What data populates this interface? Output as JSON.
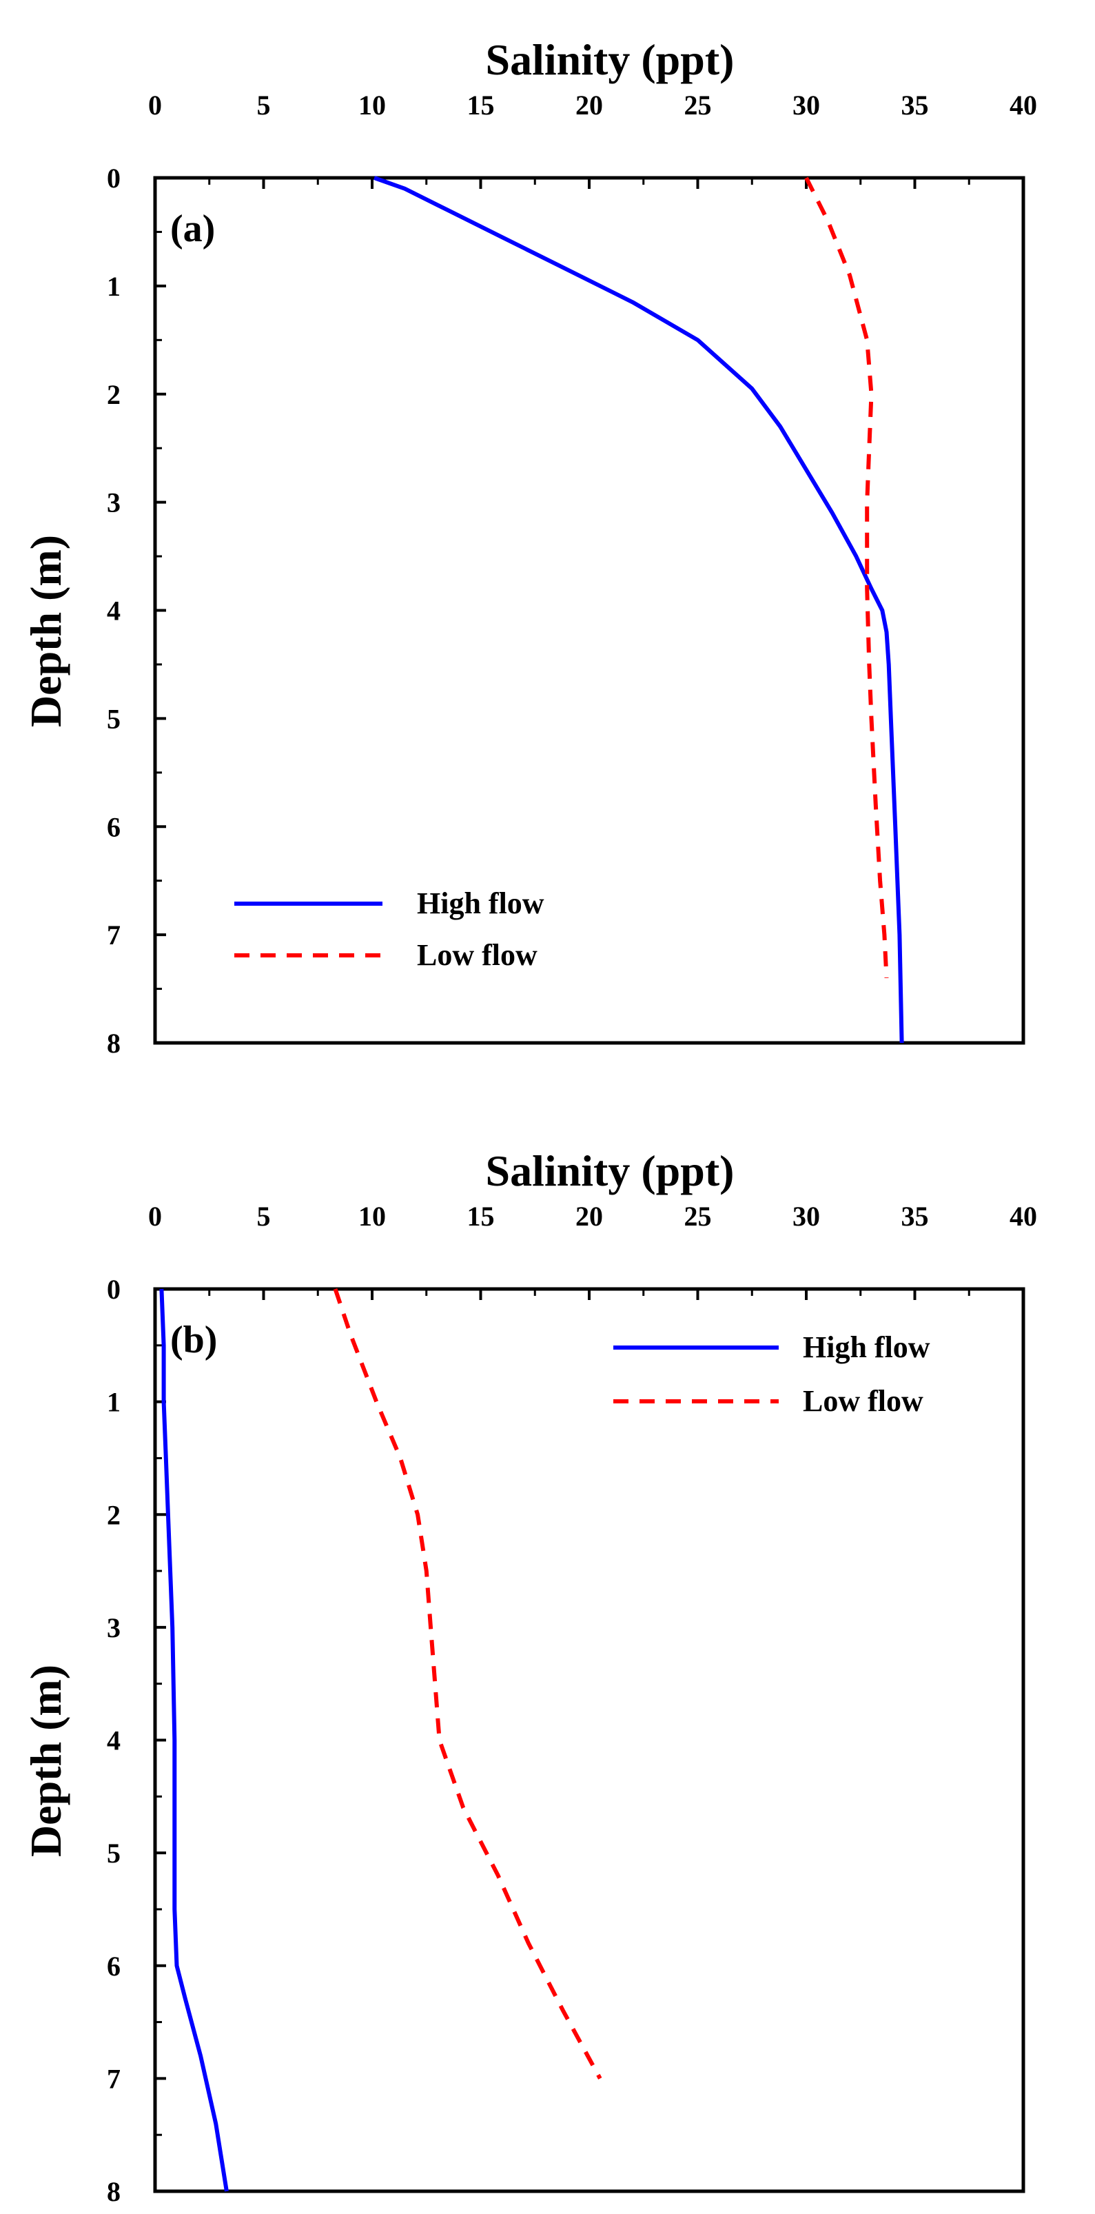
{
  "chart_data": [
    {
      "type": "line",
      "panel_label": "(a)",
      "xlabel": "Salinity (ppt)",
      "ylabel": "Depth (m)",
      "xlim": [
        0,
        40
      ],
      "ylim": [
        0,
        8
      ],
      "y_inverted": true,
      "x_axis_position": "top",
      "x_ticks": [
        "0",
        "5",
        "10",
        "15",
        "20",
        "25",
        "30",
        "35",
        "40"
      ],
      "y_ticks": [
        "0",
        "1",
        "2",
        "3",
        "4",
        "5",
        "6",
        "7",
        "8"
      ],
      "legend_position": "bottom-left",
      "series": [
        {
          "name": "High flow",
          "style": "solid",
          "color": "#0000ff",
          "x": [
            10.1,
            11.5,
            13.5,
            16.0,
            19.0,
            22.0,
            25.0,
            27.5,
            28.8,
            30.0,
            31.2,
            32.3,
            33.0,
            33.5,
            33.7,
            33.8,
            33.9,
            34.0,
            34.1,
            34.2,
            34.3,
            34.4
          ],
          "y": [
            0,
            0.1,
            0.3,
            0.55,
            0.85,
            1.15,
            1.5,
            1.95,
            2.3,
            2.7,
            3.1,
            3.5,
            3.8,
            4.0,
            4.2,
            4.5,
            5.0,
            5.5,
            6.0,
            6.5,
            7.0,
            8.0
          ]
        },
        {
          "name": "Low flow",
          "style": "dashed",
          "color": "#ff0000",
          "x": [
            30.0,
            31.0,
            32.0,
            32.8,
            33.0,
            32.9,
            32.8,
            32.8,
            32.9,
            33.0,
            33.2,
            33.4,
            33.6,
            33.7
          ],
          "y": [
            0,
            0.4,
            0.9,
            1.5,
            2.0,
            2.5,
            3.0,
            3.8,
            4.5,
            5.0,
            5.8,
            6.5,
            7.0,
            7.4
          ]
        }
      ]
    },
    {
      "type": "line",
      "panel_label": "(b)",
      "xlabel": "Salinity (ppt)",
      "ylabel": "Depth (m)",
      "xlim": [
        0,
        40
      ],
      "ylim": [
        0,
        8
      ],
      "y_inverted": true,
      "x_axis_position": "top",
      "x_ticks": [
        "0",
        "5",
        "10",
        "15",
        "20",
        "25",
        "30",
        "35",
        "40"
      ],
      "y_ticks": [
        "0",
        "1",
        "2",
        "3",
        "4",
        "5",
        "6",
        "7",
        "8"
      ],
      "legend_position": "top-right",
      "series": [
        {
          "name": "High flow",
          "style": "solid",
          "color": "#0000ff",
          "x": [
            0.3,
            0.4,
            0.4,
            0.5,
            0.6,
            0.8,
            0.9,
            0.9,
            0.9,
            1.0,
            1.4,
            2.1,
            2.8,
            3.3
          ],
          "y": [
            0,
            0.5,
            1.0,
            1.5,
            2.0,
            3.0,
            4.0,
            5.0,
            5.5,
            6.0,
            6.3,
            6.8,
            7.4,
            8.0
          ]
        },
        {
          "name": "Low flow",
          "style": "dashed",
          "color": "#ff0000",
          "x": [
            8.3,
            9.0,
            10.2,
            11.3,
            12.1,
            12.5,
            12.7,
            13.1,
            14.2,
            15.8,
            17.2,
            18.8,
            20.5
          ],
          "y": [
            0,
            0.4,
            1.0,
            1.5,
            2.0,
            2.5,
            3.0,
            4.0,
            4.6,
            5.2,
            5.8,
            6.4,
            7.0
          ]
        }
      ]
    }
  ]
}
